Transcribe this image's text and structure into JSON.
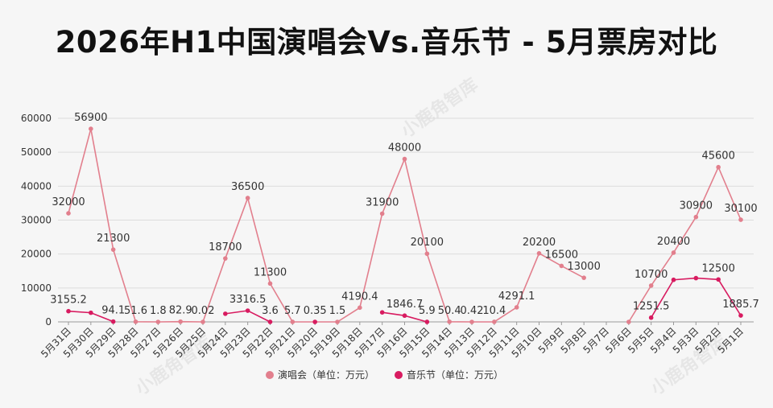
{
  "chart_data": {
    "type": "line",
    "title": "2026年H1中国演唱会Vs.音乐节 - 5月票房对比",
    "categories": [
      "5月31日",
      "5月30日",
      "5月29日",
      "5月28日",
      "5月27日",
      "5月26日",
      "5月25日",
      "5月24日",
      "5月23日",
      "5月22日",
      "5月21日",
      "5月20日",
      "5月19日",
      "5月18日",
      "5月17日",
      "5月16日",
      "5月15日",
      "5月14日",
      "5月13日",
      "5月12日",
      "5月11日",
      "5月10日",
      "5月9日",
      "5月8日",
      "5月7日",
      "5月6日",
      "5月5日",
      "5月4日",
      "5月3日",
      "5月2日",
      "5月1日"
    ],
    "ylim": [
      0,
      60000
    ],
    "yticks": [
      0,
      10000,
      20000,
      30000,
      40000,
      50000,
      60000
    ],
    "grid": true,
    "legend_position": "bottom",
    "series": [
      {
        "name": "演唱会（单位：万元）",
        "color": "#e27f8d",
        "values": [
          32000,
          56900,
          21300,
          51.6,
          1.8,
          82.9,
          0.02,
          18700,
          36500,
          11300,
          5.7,
          0.35,
          1.5,
          4190.4,
          31900,
          48000,
          20100,
          50.4,
          0.42,
          10.4,
          4291.1,
          20200,
          16500,
          13000,
          null,
          0,
          10700,
          20400,
          30900,
          45600,
          30100
        ],
        "labels": [
          "32000",
          "56900",
          "21300",
          "51.6",
          "1.8",
          "82.9",
          "0.02",
          "18700",
          "36500",
          "11300",
          "5.7",
          "0.35",
          "1.5",
          "4190.4",
          "31900",
          "48000",
          "20100",
          "50.4",
          "0.42",
          "10.4",
          "4291.1",
          "20200",
          "16500",
          "13000",
          "",
          "",
          "10700",
          "20400",
          "30900",
          "45600",
          "30100"
        ]
      },
      {
        "name": "音乐节（单位：万元）",
        "color": "#d81b60",
        "values": [
          3155.2,
          2700,
          94.1,
          null,
          null,
          null,
          null,
          2400,
          3316.5,
          3.6,
          null,
          0,
          null,
          null,
          2800,
          1846.7,
          5.9,
          null,
          null,
          null,
          null,
          null,
          null,
          null,
          null,
          null,
          1251.5,
          12400,
          12900,
          12500,
          1885.7
        ],
        "labels": [
          "3155.2",
          "",
          "94.1",
          "",
          "",
          "",
          "",
          "",
          "3316.5",
          "3.6",
          "",
          "",
          "",
          "",
          "",
          "1846.7",
          "5.9",
          "",
          "",
          "",
          "",
          "",
          "",
          "",
          "",
          "",
          "1251.5",
          "",
          "",
          "12500",
          "1885.7"
        ]
      }
    ],
    "watermark": "小鹿角智库"
  }
}
